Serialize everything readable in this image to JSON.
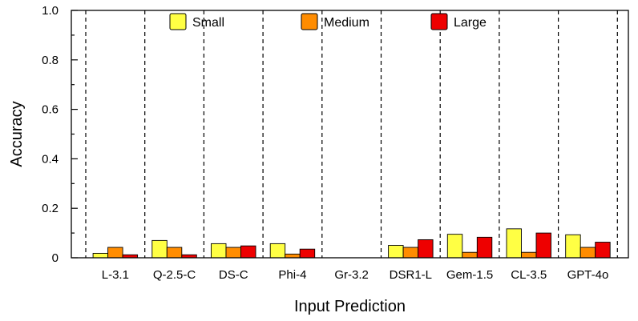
{
  "chart_data": {
    "type": "bar",
    "title": "",
    "xlabel": "Input Prediction",
    "ylabel": "Accuracy",
    "ylim": [
      0,
      1.0
    ],
    "yticks": [
      "0",
      "0.2",
      "0.4",
      "0.6",
      "0.8",
      "1.0"
    ],
    "categories": [
      "L-3.1",
      "Q-2.5-C",
      "DS-C",
      "Phi-4",
      "Gr-3.2",
      "DSR1-L",
      "Gem-1.5",
      "CL-3.5",
      "GPT-4o"
    ],
    "series": [
      {
        "name": "Small",
        "color": "#ffff44",
        "values": [
          0.018,
          0.07,
          0.057,
          0.057,
          0.0,
          0.05,
          0.095,
          0.117,
          0.093
        ]
      },
      {
        "name": "Medium",
        "color": "#ff8c00",
        "values": [
          0.042,
          0.042,
          0.042,
          0.015,
          0.0,
          0.042,
          0.022,
          0.022,
          0.042
        ]
      },
      {
        "name": "Large",
        "color": "#ee0000",
        "values": [
          0.012,
          0.012,
          0.048,
          0.035,
          0.0,
          0.073,
          0.083,
          0.1,
          0.063
        ]
      }
    ],
    "grid": false,
    "legend_position": "top"
  }
}
